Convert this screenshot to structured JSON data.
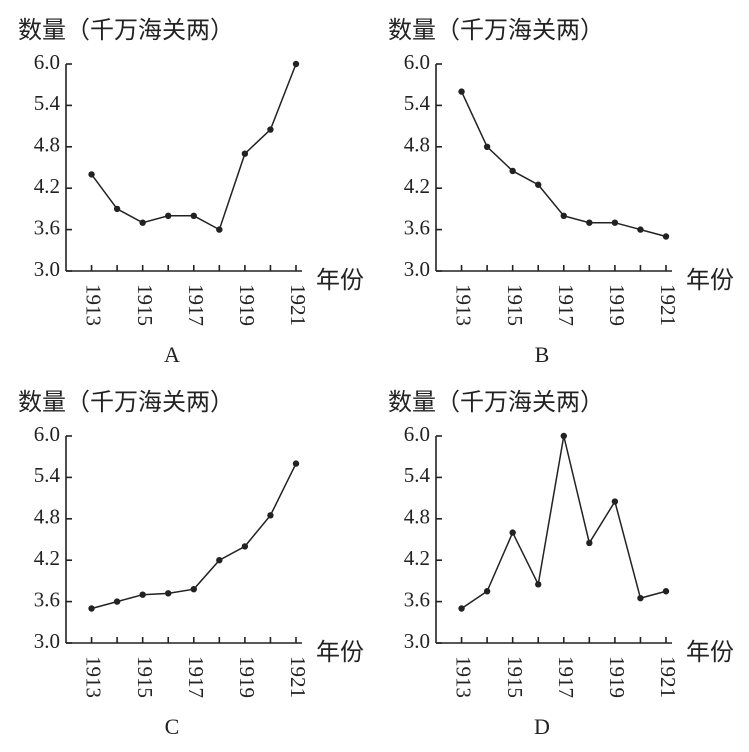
{
  "chart_data": [
    {
      "type": "line",
      "title": "数量（千万海关两）",
      "x_label": "年份",
      "caption": "A",
      "x": [
        1913,
        1914,
        1915,
        1916,
        1917,
        1918,
        1919,
        1920,
        1921
      ],
      "values": [
        4.4,
        3.9,
        3.7,
        3.8,
        3.8,
        3.6,
        4.7,
        5.05,
        6.0
      ],
      "xlim": [
        1912,
        1921
      ],
      "xticks": [
        1913,
        1915,
        1917,
        1919,
        1921
      ],
      "ylim": [
        3,
        6
      ],
      "yticks": [
        {
          "value": 3,
          "label": "3.0"
        },
        {
          "value": 3.6,
          "label": "3.6"
        },
        {
          "value": 4.2,
          "label": "4.2"
        },
        {
          "value": 4.8,
          "label": "4.8"
        },
        {
          "value": 5.4,
          "label": "5.4"
        },
        {
          "value": 6,
          "label": "6.0"
        }
      ],
      "color": "#222222"
    },
    {
      "type": "line",
      "title": "数量（千万海关两）",
      "x_label": "年份",
      "caption": "B",
      "x": [
        1913,
        1914,
        1915,
        1916,
        1917,
        1918,
        1919,
        1920,
        1921
      ],
      "values": [
        5.6,
        4.8,
        4.45,
        4.25,
        3.8,
        3.7,
        3.7,
        3.6,
        3.5
      ],
      "xlim": [
        1912,
        1921
      ],
      "xticks": [
        1913,
        1915,
        1917,
        1919,
        1921
      ],
      "ylim": [
        3,
        6
      ],
      "yticks": [
        {
          "value": 3,
          "label": "3.0"
        },
        {
          "value": 3.6,
          "label": "3.6"
        },
        {
          "value": 4.2,
          "label": "4.2"
        },
        {
          "value": 4.8,
          "label": "4.8"
        },
        {
          "value": 5.4,
          "label": "5.4"
        },
        {
          "value": 6,
          "label": "6.0"
        }
      ],
      "color": "#222222"
    },
    {
      "type": "line",
      "title": "数量（千万海关两）",
      "x_label": "年份",
      "caption": "C",
      "x": [
        1913,
        1914,
        1915,
        1916,
        1917,
        1918,
        1919,
        1920,
        1921
      ],
      "values": [
        3.5,
        3.6,
        3.7,
        3.72,
        3.78,
        4.2,
        4.4,
        4.85,
        5.6
      ],
      "xlim": [
        1912,
        1921
      ],
      "xticks": [
        1913,
        1915,
        1917,
        1919,
        1921
      ],
      "ylim": [
        3,
        6
      ],
      "yticks": [
        {
          "value": 3,
          "label": "3.0"
        },
        {
          "value": 3.6,
          "label": "3.6"
        },
        {
          "value": 4.2,
          "label": "4.2"
        },
        {
          "value": 4.8,
          "label": "4.8"
        },
        {
          "value": 5.4,
          "label": "5.4"
        },
        {
          "value": 6,
          "label": "6.0"
        }
      ],
      "color": "#222222"
    },
    {
      "type": "line",
      "title": "数量（千万海关两）",
      "x_label": "年份",
      "caption": "D",
      "x": [
        1913,
        1914,
        1915,
        1916,
        1917,
        1918,
        1919,
        1920,
        1921
      ],
      "values": [
        3.5,
        3.75,
        4.6,
        3.85,
        6.0,
        4.45,
        5.05,
        3.65,
        3.75
      ],
      "xlim": [
        1912,
        1921
      ],
      "xticks": [
        1913,
        1915,
        1917,
        1919,
        1921
      ],
      "ylim": [
        3,
        6
      ],
      "yticks": [
        {
          "value": 3,
          "label": "3.0"
        },
        {
          "value": 3.6,
          "label": "3.6"
        },
        {
          "value": 4.2,
          "label": "4.2"
        },
        {
          "value": 4.8,
          "label": "4.8"
        },
        {
          "value": 5.4,
          "label": "5.4"
        },
        {
          "value": 6,
          "label": "6.0"
        }
      ],
      "color": "#222222"
    }
  ]
}
